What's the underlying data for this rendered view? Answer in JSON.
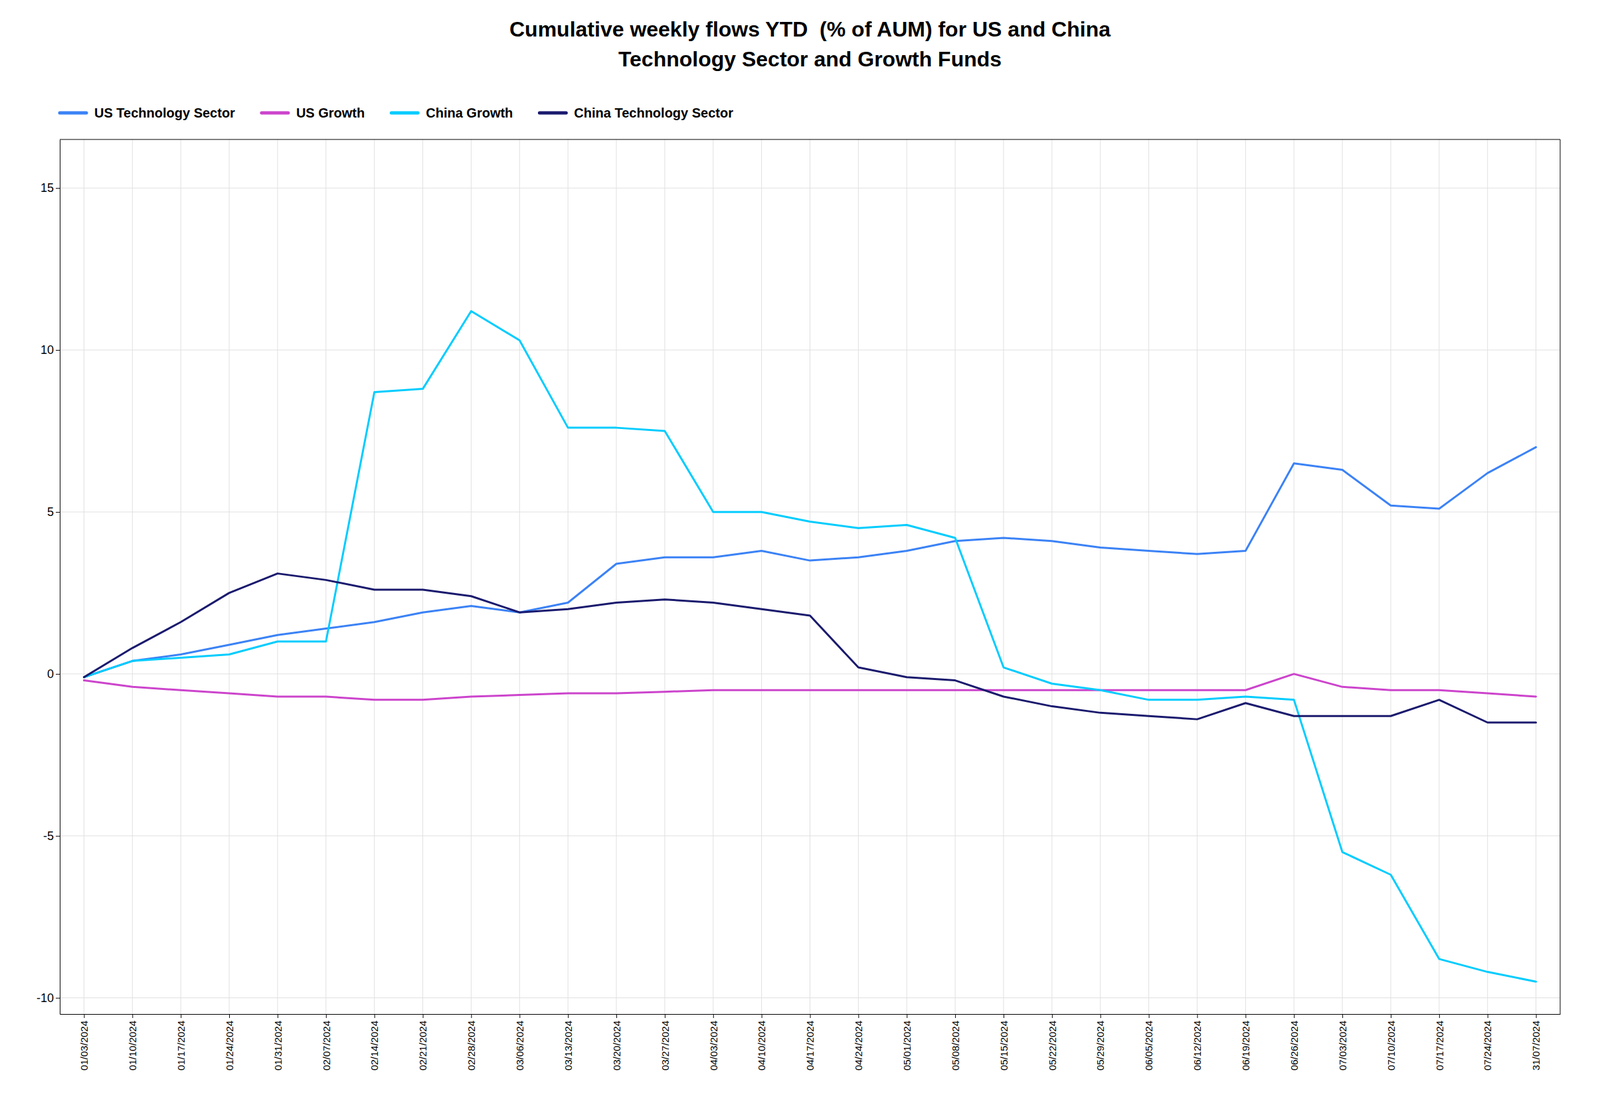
{
  "chart_data": {
    "type": "line",
    "title": "Cumulative weekly flows YTD  (% of AUM) for US and China\nTechnology Sector and Growth Funds",
    "categories": [
      "01/03/2024",
      "01/10/2024",
      "01/17/2024",
      "01/24/2024",
      "01/31/2024",
      "02/07/2024",
      "02/14/2024",
      "02/21/2024",
      "02/28/2024",
      "03/06/2024",
      "03/13/2024",
      "03/20/2024",
      "03/27/2024",
      "04/03/2024",
      "04/10/2024",
      "04/17/2024",
      "04/24/2024",
      "05/01/2024",
      "05/08/2024",
      "05/15/2024",
      "05/22/2024",
      "05/29/2024",
      "06/05/2024",
      "06/12/2024",
      "06/19/2024",
      "06/26/2024",
      "07/03/2024",
      "07/10/2024",
      "07/17/2024",
      "07/24/2024",
      "31/07/2024"
    ],
    "series": [
      {
        "name": "US Technology Sector",
        "color": "#3b82f6",
        "values": [
          -0.1,
          0.4,
          0.6,
          0.9,
          1.2,
          1.4,
          1.6,
          1.9,
          2.1,
          1.9,
          2.2,
          3.4,
          3.6,
          3.6,
          3.8,
          3.5,
          3.6,
          3.8,
          4.1,
          4.2,
          4.1,
          3.9,
          3.8,
          3.7,
          3.8,
          6.5,
          6.3,
          5.2,
          5.1,
          6.2,
          7.0
        ]
      },
      {
        "name": "US Growth",
        "color": "#cc44cc",
        "values": [
          -0.2,
          -0.4,
          -0.5,
          -0.6,
          -0.7,
          -0.7,
          -0.8,
          -0.8,
          -0.7,
          -0.65,
          -0.6,
          -0.6,
          -0.55,
          -0.5,
          -0.5,
          -0.5,
          -0.5,
          -0.5,
          -0.5,
          -0.5,
          -0.5,
          -0.5,
          -0.5,
          -0.5,
          -0.5,
          0.0,
          -0.4,
          -0.5,
          -0.5,
          -0.6,
          -0.7
        ]
      },
      {
        "name": "China Growth",
        "color": "#00ccff",
        "values": [
          -0.1,
          0.4,
          0.5,
          0.6,
          1.0,
          1.0,
          8.7,
          8.8,
          11.2,
          10.3,
          7.6,
          7.6,
          7.5,
          5.0,
          5.0,
          4.7,
          4.5,
          4.6,
          4.2,
          0.2,
          -0.3,
          -0.5,
          -0.8,
          -0.8,
          -0.7,
          -0.8,
          -5.5,
          -6.2,
          -8.8,
          -9.2,
          -9.5
        ]
      },
      {
        "name": "China Technology Sector",
        "color": "#1a1a6e",
        "values": [
          -0.1,
          0.8,
          1.6,
          2.5,
          3.1,
          2.9,
          2.6,
          2.6,
          2.4,
          1.9,
          2.0,
          2.2,
          2.3,
          2.2,
          2.0,
          1.8,
          0.2,
          -0.1,
          -0.2,
          -0.7,
          -1.0,
          -1.2,
          -1.3,
          -1.4,
          -0.9,
          -1.3,
          -1.3,
          -1.3,
          -0.8,
          -1.5,
          -1.5
        ]
      }
    ],
    "ylim": [
      -10.5,
      16.5
    ],
    "yticks": [
      -10,
      -5,
      0,
      5,
      10,
      15
    ],
    "grid": true,
    "legend": "top"
  }
}
